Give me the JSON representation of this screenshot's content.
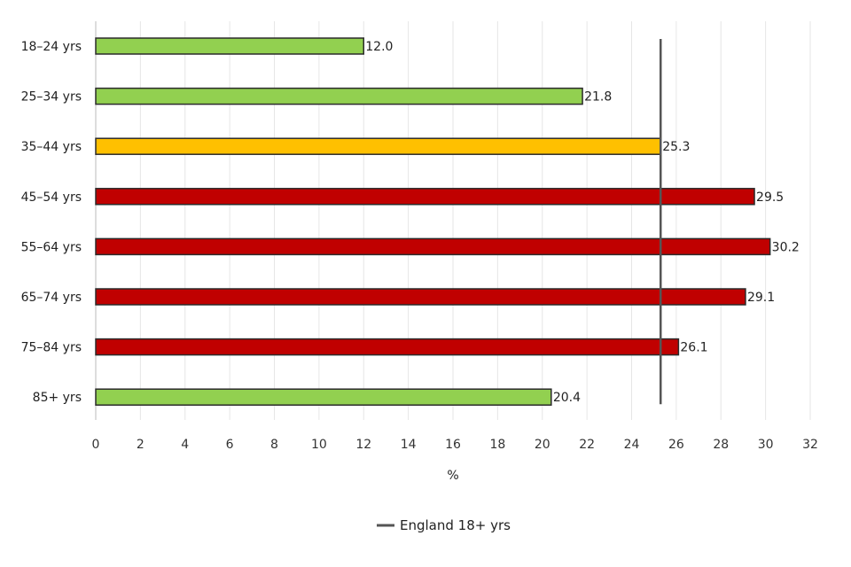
{
  "chart_data": {
    "type": "bar",
    "orientation": "horizontal",
    "categories": [
      "18–24 yrs",
      "25–34 yrs",
      "35–44 yrs",
      "45–54 yrs",
      "55–64 yrs",
      "65–74 yrs",
      "75–84 yrs",
      "85+ yrs"
    ],
    "values": [
      12.0,
      21.8,
      25.3,
      29.5,
      30.2,
      29.1,
      26.1,
      20.4
    ],
    "value_labels": [
      "12.0",
      "21.8",
      "25.3",
      "29.5",
      "30.2",
      "29.1",
      "26.1",
      "20.4"
    ],
    "bar_colors": [
      "#92d050",
      "#92d050",
      "#ffc000",
      "#c00000",
      "#c00000",
      "#c00000",
      "#c00000",
      "#92d050"
    ],
    "xlabel": "%",
    "ylabel": "",
    "xlim": [
      0,
      32
    ],
    "xticks": [
      0,
      2,
      4,
      6,
      8,
      10,
      12,
      14,
      16,
      18,
      20,
      22,
      24,
      26,
      28,
      30,
      32
    ],
    "grid": "vertical",
    "reference_line": {
      "name": "England 18+ yrs",
      "value": 25.3,
      "color": "#555555"
    },
    "legend": {
      "position": "bottom-center",
      "entries": [
        "England 18+ yrs"
      ]
    }
  }
}
